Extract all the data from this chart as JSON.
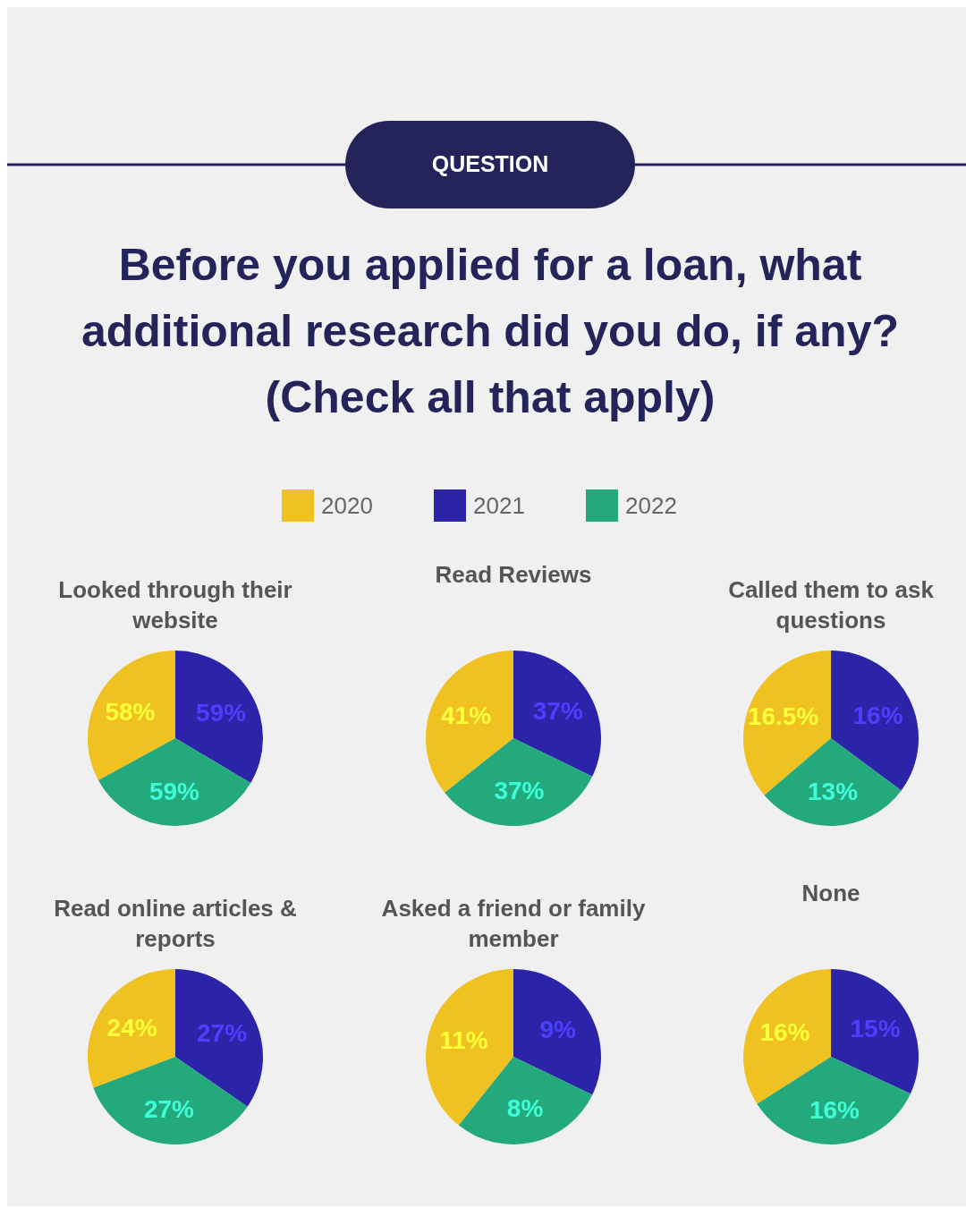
{
  "chart_data": [
    {
      "type": "other",
      "title": "Before you applied for a loan, what additional research did you do, if any? (Check all that apply)",
      "annotations": [
        "QUESTION"
      ]
    },
    {
      "type": "pie",
      "title": "Looked through their website",
      "categories": [
        "2020",
        "2021",
        "2022"
      ],
      "values": [
        58,
        59,
        59
      ],
      "colors": [
        "#efc121",
        "#2b24a9",
        "#23a97b"
      ],
      "value_labels": [
        "58%",
        "59%",
        "59%"
      ],
      "legend": "top"
    },
    {
      "type": "pie",
      "title": "Read Reviews",
      "categories": [
        null,
        null,
        null
      ],
      "values": [
        41,
        37,
        37
      ],
      "colors": [
        "#efc121",
        "#2b24a9",
        "#23a97b"
      ],
      "value_labels": [
        "41%",
        "37%",
        "37%"
      ]
    },
    {
      "type": "pie",
      "title": "Called them to ask questions",
      "categories": [
        null,
        null,
        null
      ],
      "values": [
        16.5,
        16,
        13
      ],
      "colors": [
        "#efc121",
        "#2b24a9",
        "#23a97b"
      ],
      "value_labels": [
        "16.5%",
        "16%",
        "13%"
      ]
    },
    {
      "type": "pie",
      "title": "Read online articles & reports",
      "categories": [
        null,
        null,
        null
      ],
      "values": [
        24,
        27,
        27
      ],
      "colors": [
        "#efc121",
        "#2b24a9",
        "#23a97b"
      ],
      "value_labels": [
        "24%",
        "27%",
        "27%"
      ]
    },
    {
      "type": "pie",
      "title": "Asked a friend or family member",
      "categories": [
        null,
        null,
        null
      ],
      "values": [
        11,
        9,
        8
      ],
      "colors": [
        "#efc121",
        "#2b24a9",
        "#23a97b"
      ],
      "value_labels": [
        "11%",
        "9%",
        "8%"
      ]
    },
    {
      "type": "pie",
      "title": "None",
      "categories": [
        null,
        null,
        null
      ],
      "values": [
        16,
        15,
        16
      ],
      "colors": [
        "#efc121",
        "#2b24a9",
        "#23a97b"
      ],
      "value_labels": [
        "16%",
        "15%",
        "16%"
      ]
    }
  ]
}
